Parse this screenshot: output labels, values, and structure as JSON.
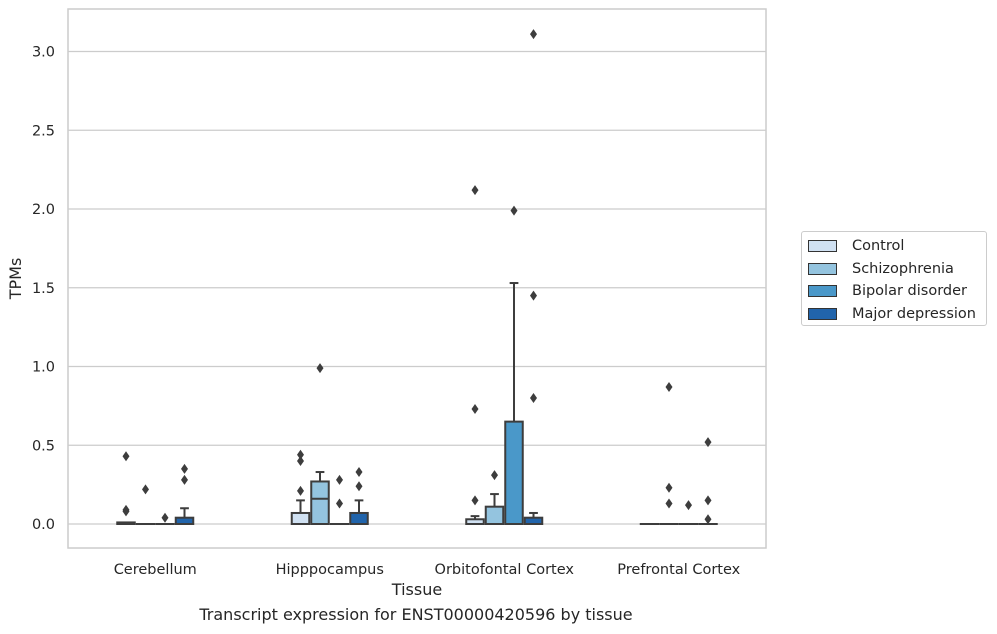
{
  "chart_data": {
    "type": "box",
    "caption": "Transcript expression for ENST00000420596 by tissue",
    "xlabel": "Tissue",
    "ylabel": "TPMs",
    "ylim": [
      -0.15,
      3.27
    ],
    "yticks": [
      "0.0",
      "0.5",
      "1.0",
      "1.5",
      "2.0",
      "2.5",
      "3.0"
    ],
    "grid": "horizontal",
    "legend_position": "right",
    "categories": [
      "Cerebellum",
      "Hipppocampus",
      "Orbitofontal Cortex",
      "Prefrontal Cortex"
    ],
    "series": [
      {
        "name": "Control",
        "color": "#d0e1f2",
        "boxes": [
          {
            "q1": 0.0,
            "median": 0.0,
            "q3": 0.01,
            "whisker_low": 0.0,
            "whisker_high": 0.01,
            "outliers": [
              0.43,
              0.09,
              0.08
            ]
          },
          {
            "q1": 0.0,
            "median": 0.0,
            "q3": 0.07,
            "whisker_low": 0.0,
            "whisker_high": 0.15,
            "outliers": [
              0.44,
              0.4,
              0.21
            ]
          },
          {
            "q1": 0.0,
            "median": 0.0,
            "q3": 0.03,
            "whisker_low": 0.0,
            "whisker_high": 0.05,
            "outliers": [
              2.12,
              0.73,
              0.15
            ]
          },
          {
            "q1": 0.0,
            "median": 0.0,
            "q3": 0.0,
            "whisker_low": 0.0,
            "whisker_high": 0.0,
            "outliers": []
          }
        ]
      },
      {
        "name": "Schizophrenia",
        "color": "#94c4df",
        "boxes": [
          {
            "q1": 0.0,
            "median": 0.0,
            "q3": 0.0,
            "whisker_low": 0.0,
            "whisker_high": 0.0,
            "outliers": [
              0.22
            ]
          },
          {
            "q1": 0.0,
            "median": 0.16,
            "q3": 0.27,
            "whisker_low": 0.0,
            "whisker_high": 0.33,
            "outliers": [
              0.99
            ]
          },
          {
            "q1": 0.0,
            "median": 0.0,
            "q3": 0.11,
            "whisker_low": 0.0,
            "whisker_high": 0.19,
            "outliers": [
              0.31
            ]
          },
          {
            "q1": 0.0,
            "median": 0.0,
            "q3": 0.0,
            "whisker_low": 0.0,
            "whisker_high": 0.0,
            "outliers": [
              0.87,
              0.23,
              0.13
            ]
          }
        ]
      },
      {
        "name": "Bipolar disorder",
        "color": "#4a98c9",
        "boxes": [
          {
            "q1": 0.0,
            "median": 0.0,
            "q3": 0.0,
            "whisker_low": 0.0,
            "whisker_high": 0.0,
            "outliers": [
              0.04
            ]
          },
          {
            "q1": 0.0,
            "median": 0.0,
            "q3": 0.0,
            "whisker_low": 0.0,
            "whisker_high": 0.0,
            "outliers": [
              0.28,
              0.13
            ]
          },
          {
            "q1": 0.0,
            "median": 0.0,
            "q3": 0.65,
            "whisker_low": 0.0,
            "whisker_high": 1.53,
            "outliers": [
              1.99
            ]
          },
          {
            "q1": 0.0,
            "median": 0.0,
            "q3": 0.0,
            "whisker_low": 0.0,
            "whisker_high": 0.0,
            "outliers": [
              0.12
            ]
          }
        ]
      },
      {
        "name": "Major depression",
        "color": "#2164ab",
        "boxes": [
          {
            "q1": 0.0,
            "median": 0.0,
            "q3": 0.04,
            "whisker_low": 0.0,
            "whisker_high": 0.1,
            "outliers": [
              0.35,
              0.28
            ]
          },
          {
            "q1": 0.0,
            "median": 0.0,
            "q3": 0.07,
            "whisker_low": 0.0,
            "whisker_high": 0.15,
            "outliers": [
              0.33,
              0.24
            ]
          },
          {
            "q1": 0.0,
            "median": 0.0,
            "q3": 0.04,
            "whisker_low": 0.0,
            "whisker_high": 0.07,
            "outliers": [
              3.11,
              1.45,
              0.8
            ]
          },
          {
            "q1": 0.0,
            "median": 0.0,
            "q3": 0.0,
            "whisker_low": 0.0,
            "whisker_high": 0.0,
            "outliers": [
              0.52,
              0.15,
              0.03
            ]
          }
        ]
      }
    ]
  }
}
